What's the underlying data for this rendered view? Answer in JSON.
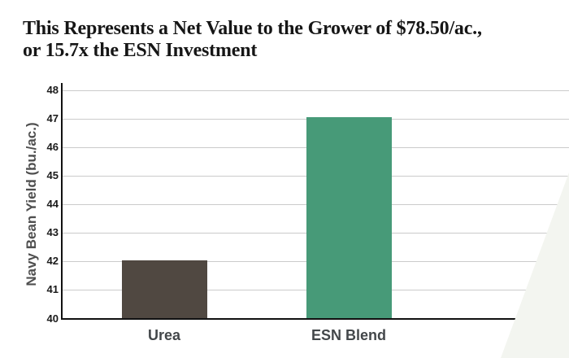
{
  "title": {
    "line1": "This Represents a Net Value to the Grower of $78.50/ac.,",
    "line2": "or 15.7x the ESN Investment"
  },
  "chart_data": {
    "type": "bar",
    "categories": [
      "Urea",
      "ESN Blend"
    ],
    "values": [
      42.05,
      47.05
    ],
    "title": "This Represents a Net Value to the Grower of $78.50/ac., or 15.7x the ESN Investment",
    "xlabel": "",
    "ylabel": "Navy Bean Yield (bu./ac.)",
    "ylim": [
      40,
      48
    ],
    "ytick_step": 1,
    "ytick_labels": [
      "40",
      "41",
      "42",
      "43",
      "44",
      "45",
      "46",
      "47",
      "48"
    ],
    "grid": "horizontal",
    "legend": "none",
    "bar_colors": [
      "#504841",
      "#479a78"
    ]
  },
  "colors": {
    "title_text": "#161616",
    "axis_line": "#111111",
    "gridline": "#cbcbcb",
    "tick_label": "#1a1a1a",
    "axis_title": "#4f4f4f",
    "category_label": "#43474a",
    "background": "#ffffff",
    "decor_wedge": "#f3f5f0"
  }
}
